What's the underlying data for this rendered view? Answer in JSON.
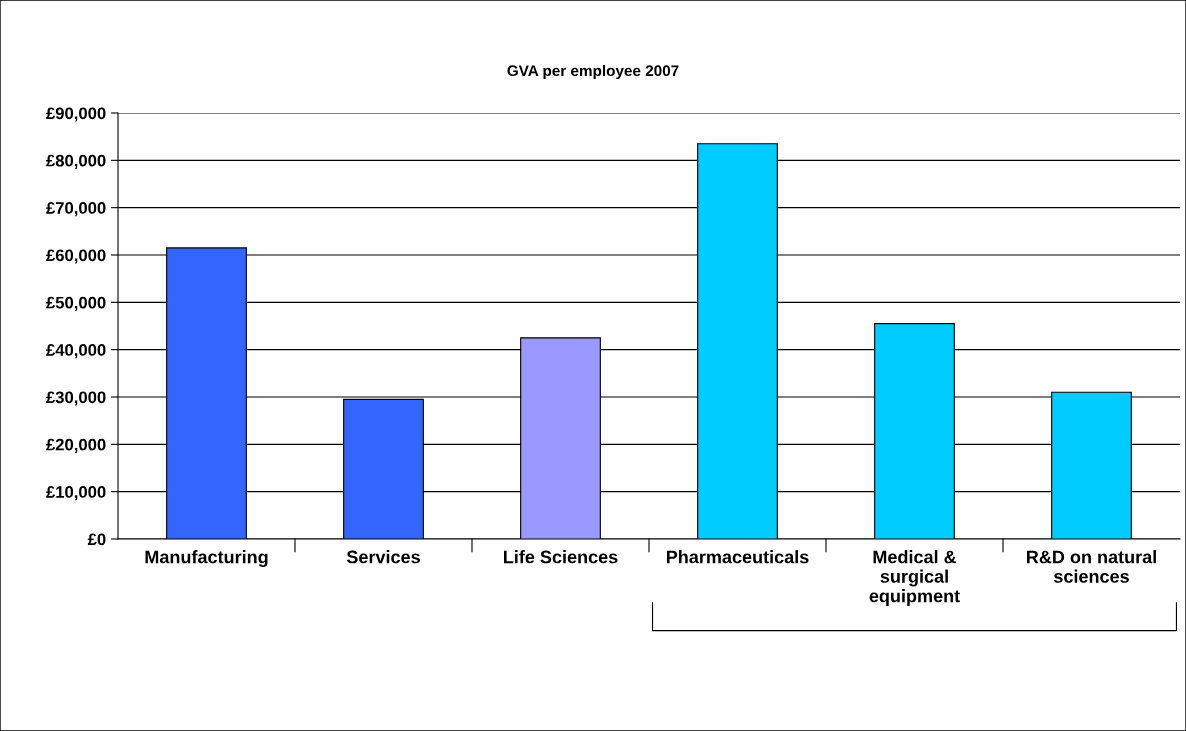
{
  "chart_data": {
    "type": "bar",
    "title": "GVA per employee 2007",
    "categories": [
      "Manufacturing",
      "Services",
      "Life Sciences",
      "Pharmaceuticals",
      "Medical &\nsurgical\nequipment",
      "R&D on natural\nsciences"
    ],
    "values": [
      61500,
      29500,
      42500,
      83500,
      45500,
      31000
    ],
    "colors": [
      "#3366ff",
      "#3366ff",
      "#9999ff",
      "#00ccff",
      "#00ccff",
      "#00ccff"
    ],
    "ylim": [
      0,
      90000
    ],
    "yticks": [
      {
        "value": 0,
        "label": "£0"
      },
      {
        "value": 10000,
        "label": "£10,000"
      },
      {
        "value": 20000,
        "label": "£20,000"
      },
      {
        "value": 30000,
        "label": "£30,000"
      },
      {
        "value": 40000,
        "label": "£40,000"
      },
      {
        "value": 50000,
        "label": "£50,000"
      },
      {
        "value": 60000,
        "label": "£60,000"
      },
      {
        "value": 70000,
        "label": "£70,000"
      },
      {
        "value": 80000,
        "label": "£80,000"
      },
      {
        "value": 90000,
        "label": "£90,000"
      }
    ],
    "grid": "y",
    "legend": false
  }
}
